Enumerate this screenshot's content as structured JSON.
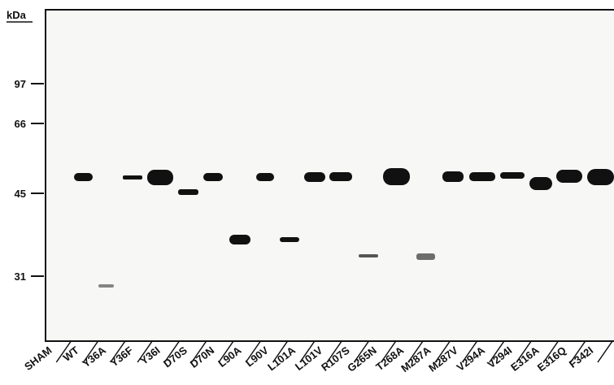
{
  "figure": {
    "unit_label": "kDa",
    "markers": [
      97,
      66,
      45,
      31
    ],
    "lanes": [
      "SHAM",
      "WT",
      "Y36A",
      "Y36F",
      "Y36I",
      "D70S",
      "D70N",
      "L90A",
      "L90V",
      "L101A",
      "L101V",
      "R107S",
      "G265N",
      "T268A",
      "M287A",
      "M287V",
      "V294A",
      "V294I",
      "E316A",
      "E316Q",
      "F342I"
    ]
  }
}
